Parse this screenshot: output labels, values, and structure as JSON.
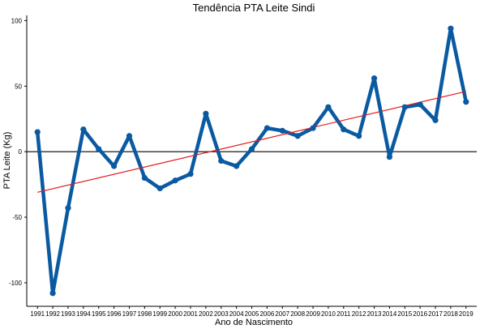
{
  "chart_data": {
    "type": "line",
    "title": "Tendência PTA Leite Sindi",
    "xlabel": "Ano de Nascimento",
    "ylabel": "PTA Leite (Kg)",
    "x": [
      1991,
      1992,
      1993,
      1994,
      1995,
      1996,
      1997,
      1998,
      1999,
      2000,
      2001,
      2002,
      2003,
      2004,
      2005,
      2006,
      2007,
      2008,
      2009,
      2010,
      2011,
      2012,
      2013,
      2014,
      2015,
      2016,
      2017,
      2018,
      2019
    ],
    "ylim": [
      -118,
      104
    ],
    "yticks": [
      -100,
      -50,
      0,
      50,
      100
    ],
    "series": [
      {
        "values": [
          15,
          -108,
          -43,
          17,
          2,
          -11,
          12,
          -20,
          -28,
          -22,
          -17,
          29,
          -7,
          -11,
          2,
          18,
          16,
          12,
          18,
          34,
          17,
          12,
          56,
          -4,
          34,
          36,
          24,
          94,
          38
        ],
        "color": "#0a5aa2"
      }
    ],
    "trend_line": {
      "start": [
        1991,
        -31
      ],
      "end": [
        2019,
        46
      ],
      "color": "#e31a1c"
    },
    "reference_line": {
      "y": 0,
      "color": "#000000"
    },
    "grid": false,
    "legend": "none"
  }
}
